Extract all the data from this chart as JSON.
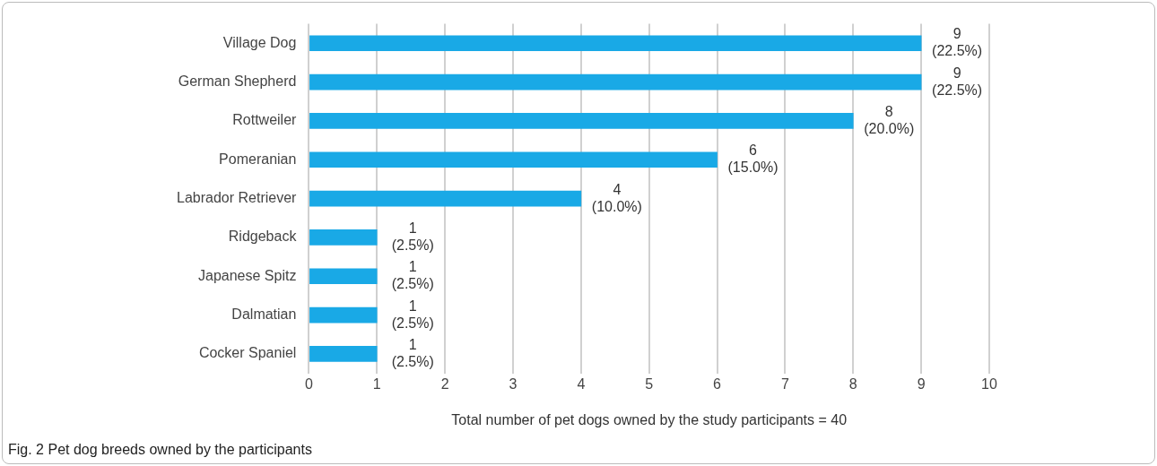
{
  "chart_data": {
    "type": "bar",
    "orientation": "horizontal",
    "title": "Fig. 2 Pet dog breeds owned by the participants",
    "xlabel": "Total number of pet dogs owned by the study participants = 40",
    "categories": [
      "Village Dog",
      "German Shepherd",
      "Rottweiler",
      "Pomeranian",
      "Labrador Retriever",
      "Ridgeback",
      "Japanese Spitz",
      "Dalmatian",
      "Cocker Spaniel"
    ],
    "values": [
      9,
      9,
      8,
      6,
      4,
      1,
      1,
      1,
      1
    ],
    "value_labels": [
      "9\n(22.5%)",
      "9\n(22.5%)",
      "8\n(20.0%)",
      "6\n(15.0%)",
      "4\n(10.0%)",
      "1\n(2.5%)",
      "1\n(2.5%)",
      "1\n(2.5%)",
      "1\n(2.5%)"
    ],
    "color": "#19a9e6",
    "xlim": [
      0,
      10
    ],
    "xticks": [
      0,
      1,
      2,
      3,
      4,
      5,
      6,
      7,
      8,
      9,
      10
    ],
    "grid": "x"
  }
}
